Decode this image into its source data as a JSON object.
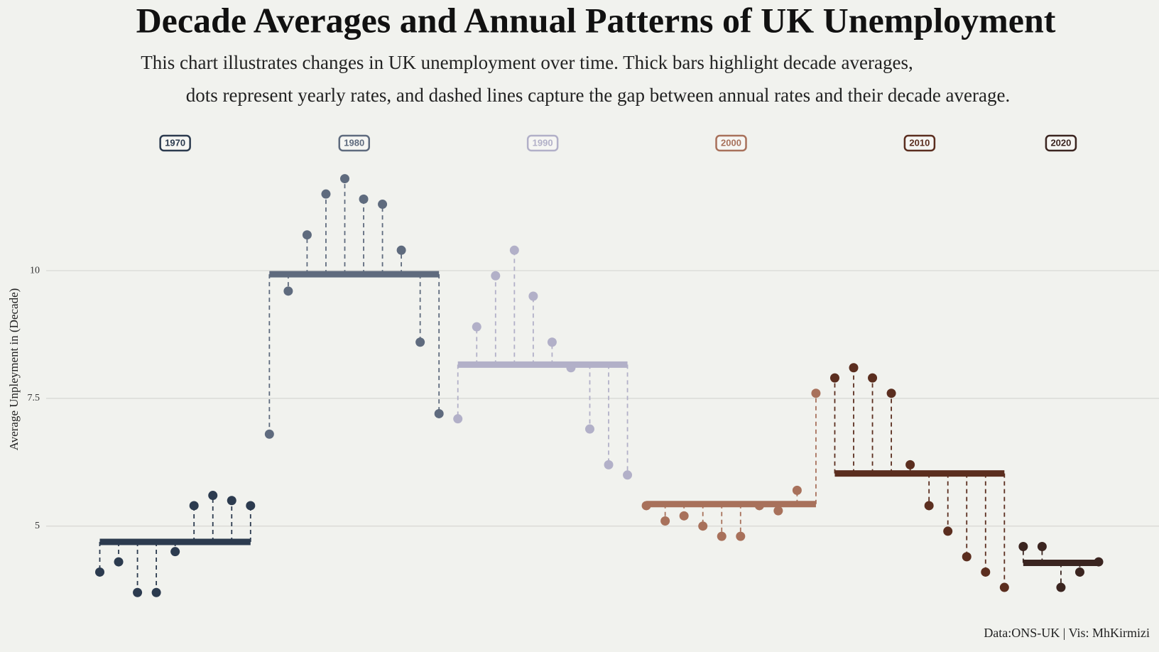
{
  "chart_data": {
    "type": "decade-lollipop",
    "title": "Decade Averages and Annual Patterns of UK Unemployment",
    "subtitle": [
      "This chart illustrates changes in UK unemployment over time. Thick bars highlight decade averages,",
      "dots represent yearly rates, and dashed lines capture the gap between annual rates and their decade average."
    ],
    "y_label": "Average Unpleyment in (Decade)",
    "caption": "Data:ONS-UK | Vis: MhKirmizi",
    "ylim": [
      3.3,
      12.1
    ],
    "yticks": [
      5,
      7.5,
      10
    ],
    "grid": true,
    "series": [
      {
        "name": "1970",
        "color": "#2c3b4f",
        "average": 4.69,
        "x": [
          1971,
          1972,
          1973,
          1974,
          1975,
          1976,
          1977,
          1978,
          1979
        ],
        "values": [
          4.1,
          4.3,
          3.7,
          3.7,
          4.5,
          5.4,
          5.6,
          5.5,
          5.4
        ]
      },
      {
        "name": "1980",
        "color": "#5f6b7e",
        "average": 9.93,
        "x": [
          1980,
          1981,
          1982,
          1983,
          1984,
          1985,
          1986,
          1987,
          1988,
          1989
        ],
        "values": [
          6.8,
          9.6,
          10.7,
          11.5,
          11.8,
          11.4,
          11.3,
          10.4,
          8.6,
          7.2
        ]
      },
      {
        "name": "1990",
        "color": "#b2b0c8",
        "average": 8.16,
        "x": [
          1990,
          1991,
          1992,
          1993,
          1994,
          1995,
          1996,
          1997,
          1998,
          1999
        ],
        "values": [
          7.1,
          8.9,
          9.9,
          10.4,
          9.5,
          8.6,
          8.1,
          6.9,
          6.2,
          6.0
        ]
      },
      {
        "name": "2000",
        "color": "#a8715b",
        "average": 5.43,
        "x": [
          2000,
          2001,
          2002,
          2003,
          2004,
          2005,
          2006,
          2007,
          2008,
          2009
        ],
        "values": [
          5.4,
          5.1,
          5.2,
          5.0,
          4.8,
          4.8,
          5.4,
          5.3,
          5.7,
          7.6
        ]
      },
      {
        "name": "2010",
        "color": "#5b2e1f",
        "average": 6.03,
        "x": [
          2010,
          2011,
          2012,
          2013,
          2014,
          2015,
          2016,
          2017,
          2018,
          2019
        ],
        "values": [
          7.9,
          8.1,
          7.9,
          7.6,
          6.2,
          5.4,
          4.9,
          4.4,
          4.1,
          3.8
        ]
      },
      {
        "name": "2020",
        "color": "#3b2520",
        "average": 4.28,
        "x": [
          2020,
          2021,
          2022,
          2023,
          2024
        ],
        "values": [
          4.6,
          4.6,
          3.8,
          4.1,
          4.3
        ]
      }
    ]
  }
}
